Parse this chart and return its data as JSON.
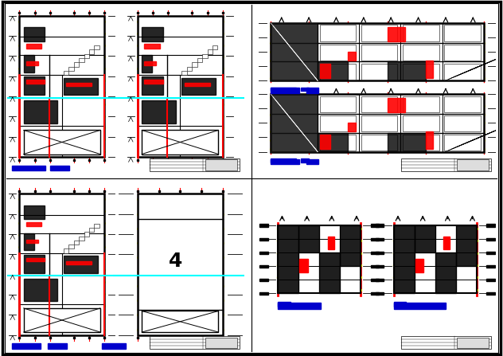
{
  "fig_width": 6.32,
  "fig_height": 4.47,
  "dpi": 100,
  "bg_color": "#ffffff",
  "black": "#000000",
  "red": "#ff0000",
  "cyan": "#00ffff",
  "yellow": "#ffff00",
  "blue": "#0000cc",
  "white": "#ffffff"
}
